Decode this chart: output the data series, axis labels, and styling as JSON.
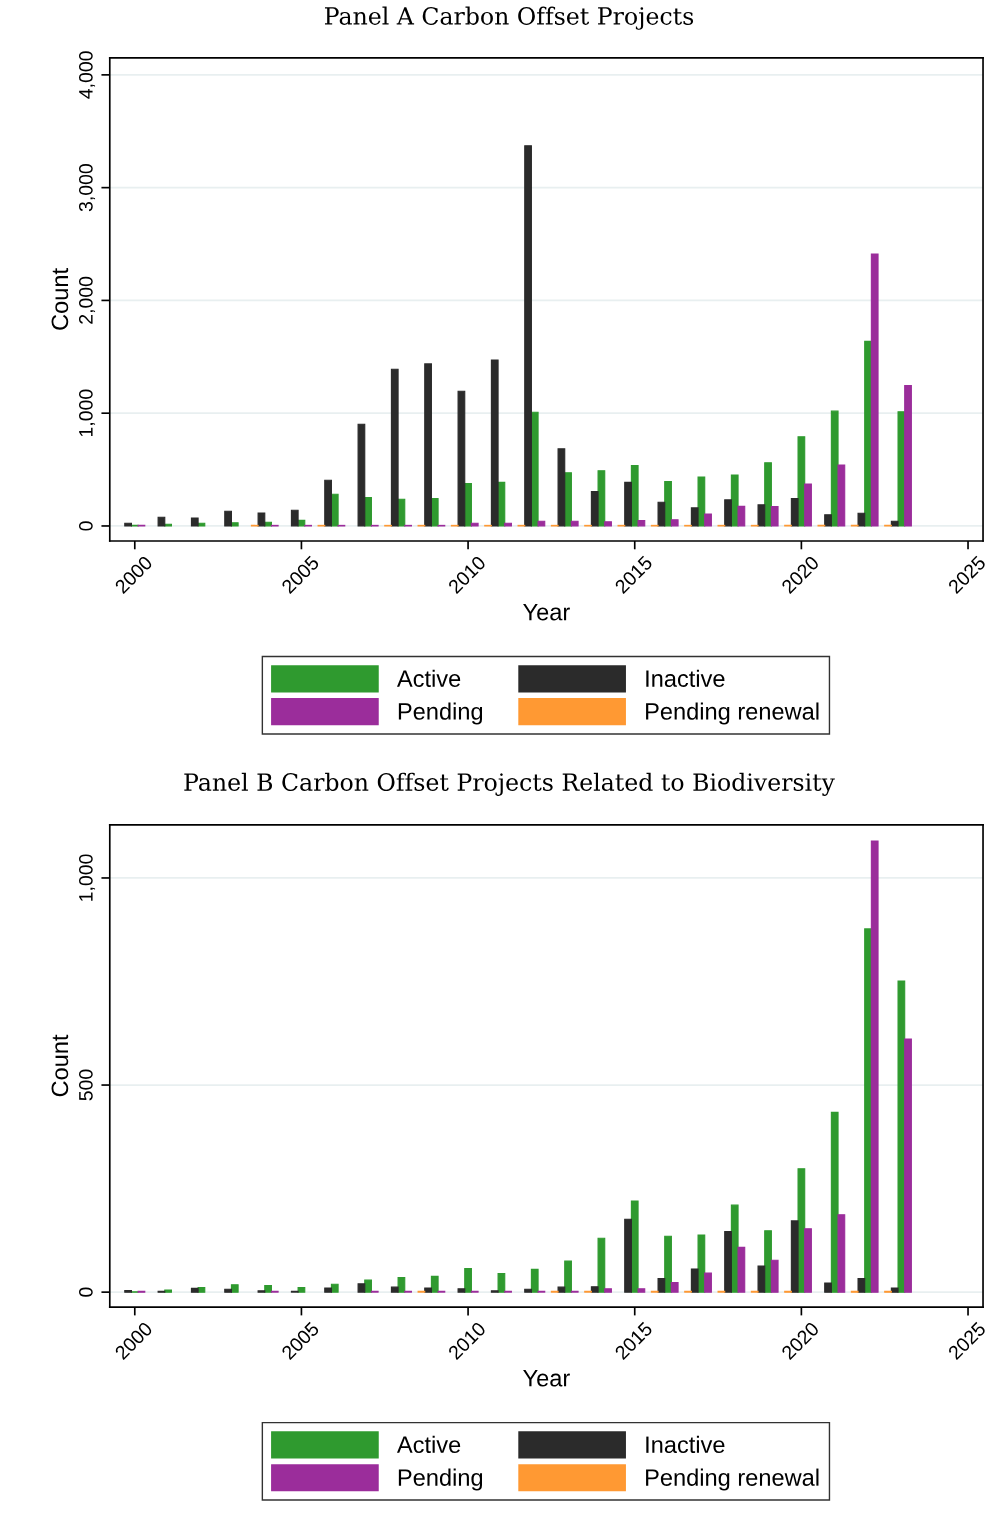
{
  "chart_data": [
    {
      "type": "bar",
      "title": "Panel A Carbon Offset Projects",
      "xlabel": "Year",
      "ylabel": "Count",
      "x": [
        2000,
        2001,
        2002,
        2003,
        2004,
        2005,
        2006,
        2007,
        2008,
        2009,
        2010,
        2011,
        2012,
        2013,
        2014,
        2015,
        2016,
        2017,
        2018,
        2019,
        2020,
        2021,
        2022,
        2023
      ],
      "series": [
        {
          "name": "Active",
          "color": "#2f9a2f",
          "values": [
            5,
            15,
            24,
            29,
            33,
            50,
            281,
            251,
            237,
            242,
            375,
            387,
            1008,
            472,
            490,
            536,
            394,
            434,
            452,
            560,
            790,
            1018,
            1637,
            1012
          ]
        },
        {
          "name": "Inactive",
          "color": "#2b2b2b",
          "values": [
            24,
            77,
            71,
            130,
            115,
            139,
            405,
            902,
            1390,
            1437,
            1195,
            1472,
            3371,
            684,
            305,
            387,
            210,
            160,
            231,
            187,
            244,
            100,
            113,
            42
          ]
        },
        {
          "name": "Pending",
          "color": "#9b2d9b",
          "values": [
            5,
            null,
            null,
            null,
            5,
            5,
            5,
            5,
            5,
            5,
            24,
            24,
            42,
            42,
            37,
            47,
            55,
            106,
            174,
            172,
            371,
            540,
            2411,
            1245
          ]
        },
        {
          "name": "Pending renewal",
          "color": "#ff9933",
          "values": [
            null,
            null,
            null,
            null,
            5,
            null,
            5,
            null,
            5,
            5,
            5,
            5,
            5,
            5,
            5,
            5,
            5,
            5,
            5,
            5,
            5,
            5,
            5,
            5
          ]
        }
      ],
      "xlim": [
        1999.25,
        2025.45
      ],
      "xticks": [
        2000,
        2005,
        2010,
        2015,
        2020,
        2025
      ],
      "ylim": [
        -133,
        4150
      ],
      "yticks": [
        {
          "value": 0,
          "label": "0"
        },
        {
          "value": 1000,
          "label": "1,000"
        },
        {
          "value": 2000,
          "label": "2,000"
        },
        {
          "value": 3000,
          "label": "3,000"
        },
        {
          "value": 4000,
          "label": "4,000"
        }
      ],
      "grid": "y",
      "legend": "bottom"
    },
    {
      "type": "bar",
      "title": "Panel B Carbon Offset Projects Related to Biodiversity",
      "xlabel": "Year",
      "ylabel": "Count",
      "x": [
        2000,
        2001,
        2002,
        2003,
        2004,
        2005,
        2006,
        2007,
        2008,
        2009,
        2010,
        2011,
        2012,
        2013,
        2014,
        2015,
        2016,
        2017,
        2018,
        2019,
        2020,
        2021,
        2022,
        2023
      ],
      "series": [
        {
          "name": "Active",
          "color": "#2f9a2f",
          "values": [
            1,
            5,
            11,
            18,
            16,
            11,
            19,
            29,
            35,
            38,
            57,
            45,
            55,
            75,
            130,
            220,
            135,
            138,
            210,
            148,
            298,
            434,
            877,
            751
          ]
        },
        {
          "name": "Inactive",
          "color": "#2b2b2b",
          "values": [
            4,
            2,
            9,
            7,
            3,
            2,
            10,
            20,
            12,
            10,
            8,
            3,
            7,
            12,
            13,
            176,
            33,
            56,
            146,
            63,
            172,
            22,
            33,
            10
          ]
        },
        {
          "name": "Pending",
          "color": "#9b2d9b",
          "values": [
            2,
            null,
            null,
            null,
            2,
            null,
            null,
            2,
            2,
            2,
            2,
            2,
            2,
            2,
            8,
            8,
            23,
            46,
            108,
            77,
            153,
            187,
            1089,
            611
          ]
        },
        {
          "name": "Pending renewal",
          "color": "#ff9933",
          "values": [
            null,
            null,
            null,
            null,
            null,
            null,
            null,
            null,
            null,
            2,
            null,
            null,
            null,
            2,
            2,
            null,
            2,
            2,
            2,
            2,
            2,
            null,
            2,
            2
          ]
        }
      ],
      "xlim": [
        1999.25,
        2025.45
      ],
      "xticks": [
        2000,
        2005,
        2010,
        2015,
        2020,
        2025
      ],
      "ylim": [
        -36,
        1128
      ],
      "yticks": [
        {
          "value": 0,
          "label": "0"
        },
        {
          "value": 500,
          "label": "500"
        },
        {
          "value": 1000,
          "label": "1,000"
        }
      ],
      "grid": "y",
      "legend": "bottom"
    }
  ]
}
